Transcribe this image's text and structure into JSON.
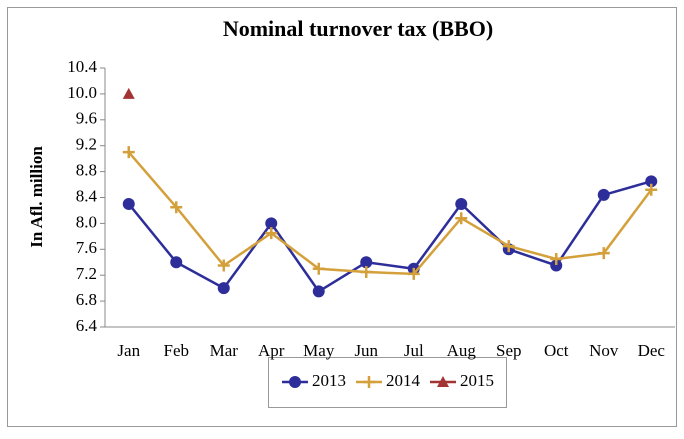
{
  "chart_data": {
    "type": "line",
    "title": "Nominal turnover tax (BBO)",
    "y_label": "In Afl. million",
    "categories": [
      "Jan",
      "Feb",
      "Mar",
      "Apr",
      "May",
      "Jun",
      "Jul",
      "Aug",
      "Sep",
      "Oct",
      "Nov",
      "Dec"
    ],
    "series": [
      {
        "name": "2013",
        "color": "#2e2e9a",
        "marker": "circle",
        "values": [
          8.3,
          7.4,
          7.0,
          8.0,
          6.95,
          7.4,
          7.3,
          8.3,
          7.6,
          7.35,
          8.44,
          8.65
        ]
      },
      {
        "name": "2014",
        "color": "#d4a03c",
        "marker": "plus",
        "values": [
          9.1,
          8.25,
          7.35,
          7.85,
          7.3,
          7.25,
          7.22,
          8.08,
          7.65,
          7.45,
          7.54,
          8.52
        ]
      },
      {
        "name": "2015",
        "color": "#a33434",
        "marker": "triangle",
        "values": [
          10.0,
          null,
          null,
          null,
          null,
          null,
          null,
          null,
          null,
          null,
          null,
          null
        ]
      }
    ],
    "ylim": [
      6.4,
      10.4
    ],
    "yticks": [
      6.4,
      6.8,
      7.2,
      7.6,
      {
        "value": 8,
        "label": "8.0"
      },
      8.4,
      8.8,
      9.2,
      9.6,
      {
        "value": 10,
        "label": "10.0"
      },
      10.4
    ],
    "legend": "bottom"
  }
}
